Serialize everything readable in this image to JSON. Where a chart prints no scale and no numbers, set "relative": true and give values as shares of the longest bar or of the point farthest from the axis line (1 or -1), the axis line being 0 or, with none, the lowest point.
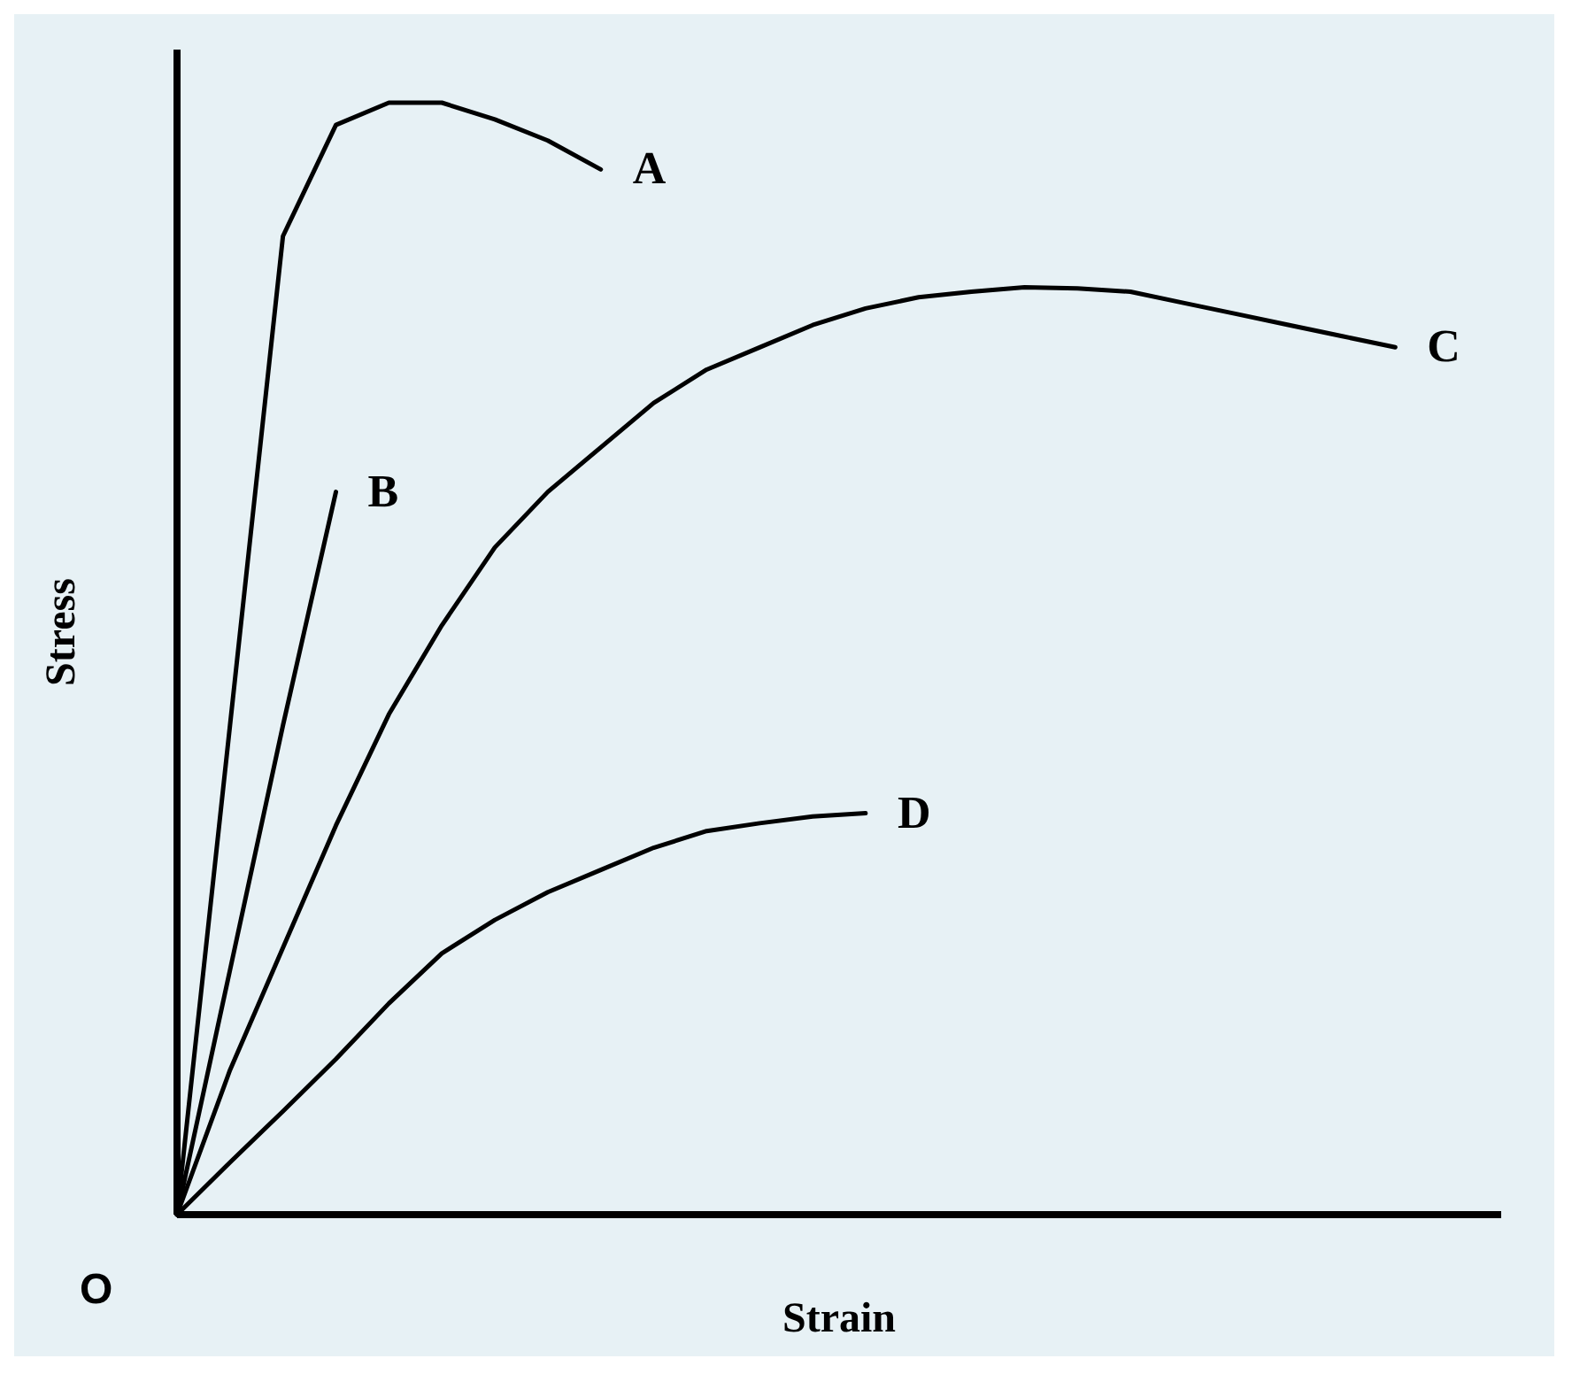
{
  "chart_data": {
    "type": "line",
    "relative": true,
    "xlabel": "Strain",
    "ylabel": "Stress",
    "annotations": [
      "O"
    ],
    "marker": "none",
    "line_style": "solid",
    "categories": [
      null,
      null,
      null,
      null,
      null,
      null,
      null,
      null,
      null,
      null,
      null,
      null,
      null,
      null,
      null,
      null,
      null,
      null,
      null,
      null,
      null,
      null,
      null,
      null,
      null,
      null
    ],
    "series": [
      {
        "name": "A",
        "color": "#000000",
        "values": [
          0,
          0.44,
          0.88,
          0.98,
          1,
          1,
          0.985,
          0.966,
          0.94,
          null,
          null,
          null,
          null,
          null,
          null,
          null,
          null,
          null,
          null,
          null,
          null,
          null,
          null,
          null,
          null,
          null
        ]
      },
      {
        "name": "B",
        "color": "#000000",
        "values": [
          0,
          0.22,
          0.44,
          0.65,
          null,
          null,
          null,
          null,
          null,
          null,
          null,
          null,
          null,
          null,
          null,
          null,
          null,
          null,
          null,
          null,
          null,
          null,
          null,
          null,
          null,
          null
        ]
      },
      {
        "name": "C",
        "color": "#000000",
        "values": [
          0,
          0.13,
          0.24,
          0.35,
          0.45,
          0.53,
          0.6,
          0.65,
          0.69,
          0.73,
          0.76,
          0.78,
          0.8,
          0.815,
          0.825,
          0.83,
          0.834,
          0.833,
          0.83,
          0.82,
          0.81,
          0.8,
          0.79,
          0.78,
          null,
          null
        ]
      },
      {
        "name": "D",
        "color": "#000000",
        "values": [
          0,
          0.047,
          0.093,
          0.14,
          0.19,
          0.235,
          0.265,
          0.29,
          0.31,
          0.33,
          0.345,
          0.352,
          0.358,
          0.361,
          null,
          null,
          null,
          null,
          null,
          null,
          null,
          null,
          null,
          null,
          null,
          null
        ]
      }
    ]
  }
}
